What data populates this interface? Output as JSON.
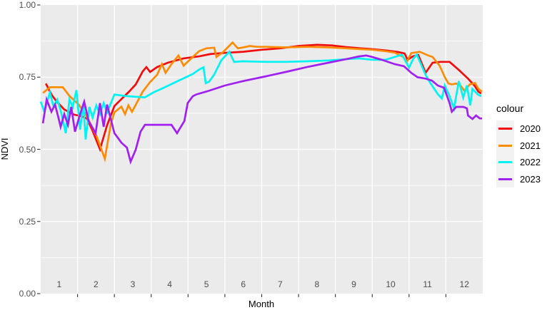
{
  "figure_title": "",
  "axes": {
    "x_title": "Month",
    "y_title": "NDVI"
  },
  "legend": {
    "title": "colour",
    "entries": [
      {
        "label": "2020",
        "color": "#f00c0c"
      },
      {
        "label": "2021",
        "color": "#ff8c00"
      },
      {
        "label": "2022",
        "color": "#00f2f2"
      },
      {
        "label": "2023",
        "color": "#a020f0"
      }
    ]
  },
  "style": {
    "panel_background": "#ebebeb",
    "gridline_color": "#ffffff",
    "tick_color": "#333333",
    "axis_text_color": "#4d4d4d"
  },
  "chart_data": {
    "type": "line",
    "title": "",
    "xlabel": "Month",
    "ylabel": "NDVI",
    "ylim": [
      0,
      1
    ],
    "y_ticks": [
      0,
      0.25,
      0.5,
      0.75,
      1
    ],
    "y_tick_labels": [
      "0.00",
      "0.25",
      "0.50",
      "0.75",
      "1.00"
    ],
    "y_minor_ticks": [
      0.125,
      0.375,
      0.625,
      0.875
    ],
    "x_tick_labels": [
      "1",
      "2",
      "3",
      "4",
      "5",
      "6",
      "7",
      "8",
      "9",
      "10",
      "11",
      "12"
    ],
    "x_range_months": [
      0,
      12
    ],
    "grid": "white major+minor on gray panel",
    "legend_position": "right",
    "legend_title": "colour",
    "series": [
      {
        "name": "2020",
        "color": "#f00c0c",
        "points": [
          [
            0.14,
            0.728
          ],
          [
            0.3,
            0.688
          ],
          [
            0.45,
            0.663
          ],
          [
            0.64,
            0.638
          ],
          [
            0.91,
            0.62
          ],
          [
            1.1,
            0.615
          ],
          [
            1.25,
            0.607
          ],
          [
            1.4,
            0.567
          ],
          [
            1.61,
            0.5
          ],
          [
            1.8,
            0.583
          ],
          [
            2.0,
            0.65
          ],
          [
            2.2,
            0.675
          ],
          [
            2.4,
            0.7
          ],
          [
            2.58,
            0.725
          ],
          [
            2.77,
            0.77
          ],
          [
            2.87,
            0.785
          ],
          [
            2.97,
            0.768
          ],
          [
            3.16,
            0.785
          ],
          [
            3.45,
            0.8
          ],
          [
            3.88,
            0.815
          ],
          [
            4.3,
            0.822
          ],
          [
            4.6,
            0.83
          ],
          [
            5.0,
            0.834
          ],
          [
            5.5,
            0.838
          ],
          [
            6.0,
            0.845
          ],
          [
            6.5,
            0.85
          ],
          [
            7.0,
            0.858
          ],
          [
            7.5,
            0.862
          ],
          [
            7.9,
            0.86
          ],
          [
            8.3,
            0.854
          ],
          [
            8.7,
            0.85
          ],
          [
            9.0,
            0.847
          ],
          [
            9.4,
            0.842
          ],
          [
            9.7,
            0.837
          ],
          [
            9.88,
            0.832
          ],
          [
            9.96,
            0.81
          ],
          [
            10.1,
            0.822
          ],
          [
            10.25,
            0.827
          ],
          [
            10.45,
            0.765
          ],
          [
            10.64,
            0.8
          ],
          [
            10.85,
            0.803
          ],
          [
            11.1,
            0.803
          ],
          [
            11.35,
            0.775
          ],
          [
            11.6,
            0.745
          ],
          [
            11.78,
            0.72
          ],
          [
            11.88,
            0.7
          ],
          [
            11.96,
            0.693
          ]
        ]
      },
      {
        "name": "2021",
        "color": "#ff8c00",
        "points": [
          [
            0.06,
            0.695
          ],
          [
            0.25,
            0.715
          ],
          [
            0.6,
            0.715
          ],
          [
            0.78,
            0.685
          ],
          [
            1.03,
            0.655
          ],
          [
            1.22,
            0.622
          ],
          [
            1.51,
            0.548
          ],
          [
            1.74,
            0.467
          ],
          [
            1.9,
            0.585
          ],
          [
            2.0,
            0.628
          ],
          [
            2.19,
            0.648
          ],
          [
            2.29,
            0.622
          ],
          [
            2.38,
            0.652
          ],
          [
            2.48,
            0.63
          ],
          [
            2.77,
            0.7
          ],
          [
            2.97,
            0.733
          ],
          [
            3.16,
            0.758
          ],
          [
            3.29,
            0.795
          ],
          [
            3.39,
            0.765
          ],
          [
            3.55,
            0.795
          ],
          [
            3.74,
            0.825
          ],
          [
            3.88,
            0.79
          ],
          [
            4.13,
            0.82
          ],
          [
            4.3,
            0.84
          ],
          [
            4.5,
            0.85
          ],
          [
            4.71,
            0.852
          ],
          [
            4.77,
            0.82
          ],
          [
            4.96,
            0.838
          ],
          [
            5.21,
            0.87
          ],
          [
            5.35,
            0.85
          ],
          [
            5.5,
            0.853
          ],
          [
            5.68,
            0.858
          ],
          [
            5.87,
            0.855
          ],
          [
            6.12,
            0.855
          ],
          [
            6.65,
            0.853
          ],
          [
            7.23,
            0.855
          ],
          [
            7.81,
            0.853
          ],
          [
            8.3,
            0.85
          ],
          [
            8.7,
            0.847
          ],
          [
            9.0,
            0.845
          ],
          [
            9.36,
            0.84
          ],
          [
            9.61,
            0.835
          ],
          [
            9.84,
            0.82
          ],
          [
            9.94,
            0.803
          ],
          [
            10.06,
            0.833
          ],
          [
            10.29,
            0.838
          ],
          [
            10.52,
            0.825
          ],
          [
            10.64,
            0.82
          ],
          [
            10.83,
            0.79
          ],
          [
            10.97,
            0.75
          ],
          [
            11.07,
            0.728
          ],
          [
            11.16,
            0.725
          ],
          [
            11.28,
            0.728
          ],
          [
            11.4,
            0.72
          ],
          [
            11.5,
            0.703
          ],
          [
            11.65,
            0.725
          ],
          [
            11.79,
            0.73
          ],
          [
            11.88,
            0.71
          ],
          [
            11.98,
            0.7
          ]
        ]
      },
      {
        "name": "2022",
        "color": "#00f2f2",
        "points": [
          [
            0.0,
            0.665
          ],
          [
            0.1,
            0.63
          ],
          [
            0.25,
            0.697
          ],
          [
            0.35,
            0.647
          ],
          [
            0.45,
            0.672
          ],
          [
            0.54,
            0.635
          ],
          [
            0.68,
            0.556
          ],
          [
            0.78,
            0.672
          ],
          [
            0.87,
            0.647
          ],
          [
            0.97,
            0.705
          ],
          [
            1.07,
            0.568
          ],
          [
            1.16,
            0.66
          ],
          [
            1.22,
            0.534
          ],
          [
            1.32,
            0.647
          ],
          [
            1.41,
            0.61
          ],
          [
            1.51,
            0.652
          ],
          [
            1.61,
            0.622
          ],
          [
            1.71,
            0.66
          ],
          [
            1.8,
            0.627
          ],
          [
            2.0,
            0.69
          ],
          [
            2.29,
            0.685
          ],
          [
            2.58,
            0.682
          ],
          [
            2.83,
            0.68
          ],
          [
            3.06,
            0.697
          ],
          [
            3.29,
            0.71
          ],
          [
            3.55,
            0.726
          ],
          [
            3.88,
            0.746
          ],
          [
            4.13,
            0.761
          ],
          [
            4.3,
            0.776
          ],
          [
            4.42,
            0.784
          ],
          [
            4.48,
            0.729
          ],
          [
            4.57,
            0.734
          ],
          [
            4.71,
            0.759
          ],
          [
            4.9,
            0.808
          ],
          [
            5.12,
            0.838
          ],
          [
            5.25,
            0.803
          ],
          [
            5.48,
            0.805
          ],
          [
            6.12,
            0.803
          ],
          [
            6.65,
            0.803
          ],
          [
            7.23,
            0.805
          ],
          [
            7.81,
            0.808
          ],
          [
            8.39,
            0.813
          ],
          [
            8.64,
            0.815
          ],
          [
            9.0,
            0.81
          ],
          [
            9.36,
            0.81
          ],
          [
            9.61,
            0.82
          ],
          [
            9.81,
            0.828
          ],
          [
            10.0,
            0.783
          ],
          [
            10.12,
            0.815
          ],
          [
            10.21,
            0.828
          ],
          [
            10.45,
            0.758
          ],
          [
            10.58,
            0.729
          ],
          [
            10.78,
            0.691
          ],
          [
            10.89,
            0.676
          ],
          [
            10.97,
            0.721
          ],
          [
            11.1,
            0.684
          ],
          [
            11.22,
            0.642
          ],
          [
            11.35,
            0.736
          ],
          [
            11.47,
            0.679
          ],
          [
            11.57,
            0.721
          ],
          [
            11.66,
            0.652
          ],
          [
            11.72,
            0.709
          ],
          [
            11.88,
            0.689
          ],
          [
            11.96,
            0.684
          ]
        ]
      },
      {
        "name": "2023",
        "color": "#a020f0",
        "points": [
          [
            0.06,
            0.59
          ],
          [
            0.16,
            0.672
          ],
          [
            0.29,
            0.63
          ],
          [
            0.39,
            0.655
          ],
          [
            0.48,
            0.61
          ],
          [
            0.54,
            0.578
          ],
          [
            0.64,
            0.622
          ],
          [
            0.74,
            0.585
          ],
          [
            0.83,
            0.647
          ],
          [
            0.93,
            0.561
          ],
          [
            1.07,
            0.622
          ],
          [
            1.18,
            0.665
          ],
          [
            1.3,
            0.598
          ],
          [
            1.49,
            0.556
          ],
          [
            1.61,
            0.66
          ],
          [
            1.71,
            0.578
          ],
          [
            1.8,
            0.655
          ],
          [
            2.0,
            0.556
          ],
          [
            2.19,
            0.523
          ],
          [
            2.34,
            0.506
          ],
          [
            2.44,
            0.457
          ],
          [
            2.58,
            0.499
          ],
          [
            2.71,
            0.561
          ],
          [
            2.83,
            0.585
          ],
          [
            3.06,
            0.585
          ],
          [
            3.35,
            0.585
          ],
          [
            3.55,
            0.585
          ],
          [
            3.7,
            0.556
          ],
          [
            3.9,
            0.598
          ],
          [
            3.99,
            0.66
          ],
          [
            4.13,
            0.684
          ],
          [
            4.22,
            0.69
          ],
          [
            4.52,
            0.701
          ],
          [
            5.0,
            0.721
          ],
          [
            5.48,
            0.736
          ],
          [
            6.12,
            0.753
          ],
          [
            6.65,
            0.768
          ],
          [
            7.23,
            0.785
          ],
          [
            7.81,
            0.8
          ],
          [
            8.12,
            0.808
          ],
          [
            8.39,
            0.815
          ],
          [
            8.64,
            0.822
          ],
          [
            8.84,
            0.825
          ],
          [
            9.0,
            0.82
          ],
          [
            9.26,
            0.81
          ],
          [
            9.61,
            0.795
          ],
          [
            9.86,
            0.788
          ],
          [
            10.06,
            0.765
          ],
          [
            10.23,
            0.75
          ],
          [
            10.45,
            0.745
          ],
          [
            10.62,
            0.738
          ],
          [
            10.78,
            0.721
          ],
          [
            10.95,
            0.713
          ],
          [
            11.1,
            0.66
          ],
          [
            11.16,
            0.63
          ],
          [
            11.28,
            0.647
          ],
          [
            11.47,
            0.647
          ],
          [
            11.57,
            0.642
          ],
          [
            11.6,
            0.617
          ],
          [
            11.72,
            0.605
          ],
          [
            11.82,
            0.617
          ],
          [
            11.92,
            0.607
          ],
          [
            11.98,
            0.607
          ]
        ]
      }
    ]
  }
}
